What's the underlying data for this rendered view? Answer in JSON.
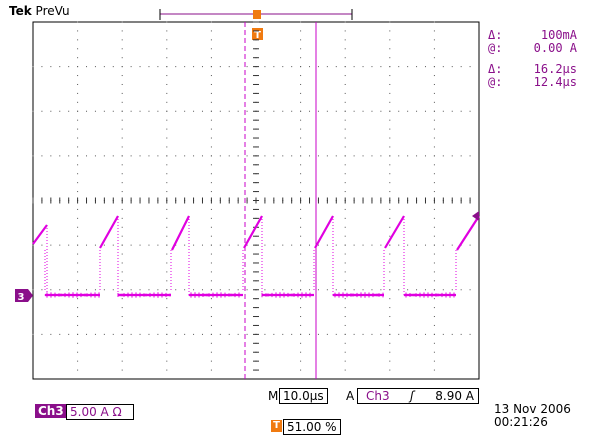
{
  "brand": {
    "name": "Tek",
    "mode": "PreVu"
  },
  "cursor_readout": [
    {
      "label": "Δ:",
      "value": "100mA"
    },
    {
      "label": "@:",
      "value": "0.00 A"
    },
    {
      "label": "Δ:",
      "value": "16.2µs"
    },
    {
      "label": "@:",
      "value": "12.4µs"
    }
  ],
  "trigger_marker": "T",
  "channel_marker": "3",
  "timebase": {
    "prefix": "M",
    "value": "10.0µs"
  },
  "trigger": {
    "prefix": "A",
    "channel": "Ch3",
    "slope_icon": "rising-edge-icon",
    "slope_glyph": "ʃ",
    "level": "8.90 A"
  },
  "channel": {
    "label": "Ch3",
    "scale": "5.00 A Ω"
  },
  "trigger_position": {
    "marker": "T",
    "value": "51.00 %"
  },
  "timestamp": {
    "date": "13 Nov 2006",
    "time": "00:21:26"
  },
  "colors": {
    "trace": "#e000e0",
    "cursor": "#c800c8",
    "label_purple": "#8a0f8a",
    "trigger_orange": "#f07a10"
  }
}
